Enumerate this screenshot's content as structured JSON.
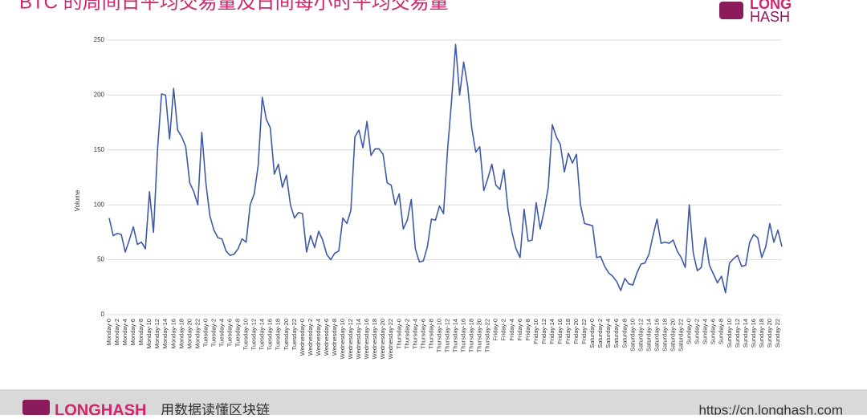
{
  "chart_data": {
    "type": "line",
    "title": "BTC 的周间日平均交易量及日间每小时平均交易量",
    "y_label": "Volume",
    "color": "#3f5aa8",
    "ylim": [
      0,
      250
    ],
    "yticks": [
      0,
      50,
      100,
      150,
      200,
      250
    ],
    "grid": true,
    "categories": [
      "Monday-0",
      null,
      "Monday-2",
      null,
      "Monday-4",
      null,
      "Monday-6",
      null,
      "Monday-8",
      null,
      "Monday-10",
      null,
      "Monday-12",
      null,
      "Monday-14",
      null,
      "Monday-16",
      null,
      "Monday-18",
      null,
      "Monday-20",
      null,
      "Monday-22",
      null,
      "Tuesday-0",
      null,
      "Tuesday-2",
      null,
      "Tuesday-4",
      null,
      "Tuesday-6",
      null,
      "Tuesday-8",
      null,
      "Tuesday-10",
      null,
      "Tuesday-12",
      null,
      "Tuesday-14",
      null,
      "Tuesday-16",
      null,
      "Tuesday-18",
      null,
      "Tuesday-20",
      null,
      "Tuesday-22",
      null,
      "Wednesday-0",
      null,
      "Wednesday-2",
      null,
      "Wednesday-4",
      null,
      "Wednesday-6",
      null,
      "Wednesday-8",
      null,
      "Wednesday-10",
      null,
      "Wednesday-12",
      null,
      "Wednesday-14",
      null,
      "Wednesday-16",
      null,
      "Wednesday-18",
      null,
      "Wednesday-20",
      null,
      "Wednesday-22",
      null,
      "Thursday-0",
      null,
      "Thursday-2",
      null,
      "Thursday-4",
      null,
      "Thursday-6",
      null,
      "Thursday-8",
      null,
      "Thursday-10",
      null,
      "Thursday-12",
      null,
      "Thursday-14",
      null,
      "Thursday-16",
      null,
      "Thursday-18",
      null,
      "Thursday-20",
      null,
      "Thursday-22",
      null,
      "Friday-0",
      null,
      "Friday-2",
      null,
      "Friday-4",
      null,
      "Friday-6",
      null,
      "Friday-8",
      null,
      "Friday-10",
      null,
      "Friday-12",
      null,
      "Friday-14",
      null,
      "Friday-16",
      null,
      "Friday-18",
      null,
      "Friday-20",
      null,
      "Friday-22",
      null,
      "Saturday-0",
      null,
      "Saturday-2",
      null,
      "Saturday-4",
      null,
      "Saturday-6",
      null,
      "Saturday-8",
      null,
      "Saturday-10",
      null,
      "Saturday-12",
      null,
      "Saturday-14",
      null,
      "Saturday-16",
      null,
      "Saturday-18",
      null,
      "Saturday-20",
      null,
      "Saturday-22",
      null,
      "Sunday-0",
      null,
      "Sunday-2",
      null,
      "Sunday-4",
      null,
      "Sunday-6",
      null,
      "Sunday-8",
      null,
      "Sunday-10",
      null,
      "Sunday-12",
      null,
      "Sunday-14",
      null,
      "Sunday-16",
      null,
      "Sunday-18",
      null,
      "Sunday-20",
      null,
      "Sunday-22",
      null
    ],
    "values": [
      88,
      72,
      74,
      73,
      57,
      68,
      80,
      64,
      66,
      60,
      112,
      75,
      150,
      201,
      200,
      160,
      206,
      168,
      162,
      153,
      120,
      112,
      100,
      166,
      120,
      90,
      77,
      70,
      69,
      58,
      54,
      55,
      60,
      69,
      66,
      100,
      110,
      136,
      198,
      178,
      170,
      128,
      137,
      116,
      127,
      100,
      88,
      93,
      92,
      57,
      72,
      61,
      76,
      68,
      55,
      50,
      56,
      58,
      88,
      83,
      95,
      162,
      168,
      152,
      176,
      145,
      151,
      151,
      146,
      120,
      118,
      100,
      110,
      78,
      86,
      105,
      60,
      48,
      49,
      62,
      87,
      86,
      99,
      92,
      150,
      195,
      246,
      200,
      230,
      208,
      170,
      148,
      153,
      113,
      124,
      137,
      118,
      114,
      132,
      96,
      75,
      60,
      52,
      96,
      67,
      68,
      102,
      78,
      95,
      116,
      173,
      162,
      155,
      130,
      147,
      138,
      146,
      100,
      83,
      82,
      81,
      52,
      53,
      44,
      38,
      35,
      30,
      22,
      33,
      28,
      27,
      38,
      46,
      47,
      55,
      72,
      87,
      65,
      66,
      65,
      68,
      58,
      52,
      43,
      100,
      56,
      40,
      43,
      70,
      45,
      37,
      29,
      35,
      20,
      47,
      51,
      54,
      44,
      45,
      66,
      73,
      70,
      52,
      62,
      83,
      66,
      77,
      62
    ]
  },
  "logo": {
    "top": "LONG",
    "bottom": "HASH"
  },
  "footer": {
    "brand": "LONGHASH",
    "slogan": "用数据读懂区块链",
    "url": "https://cn.longhash.com"
  }
}
